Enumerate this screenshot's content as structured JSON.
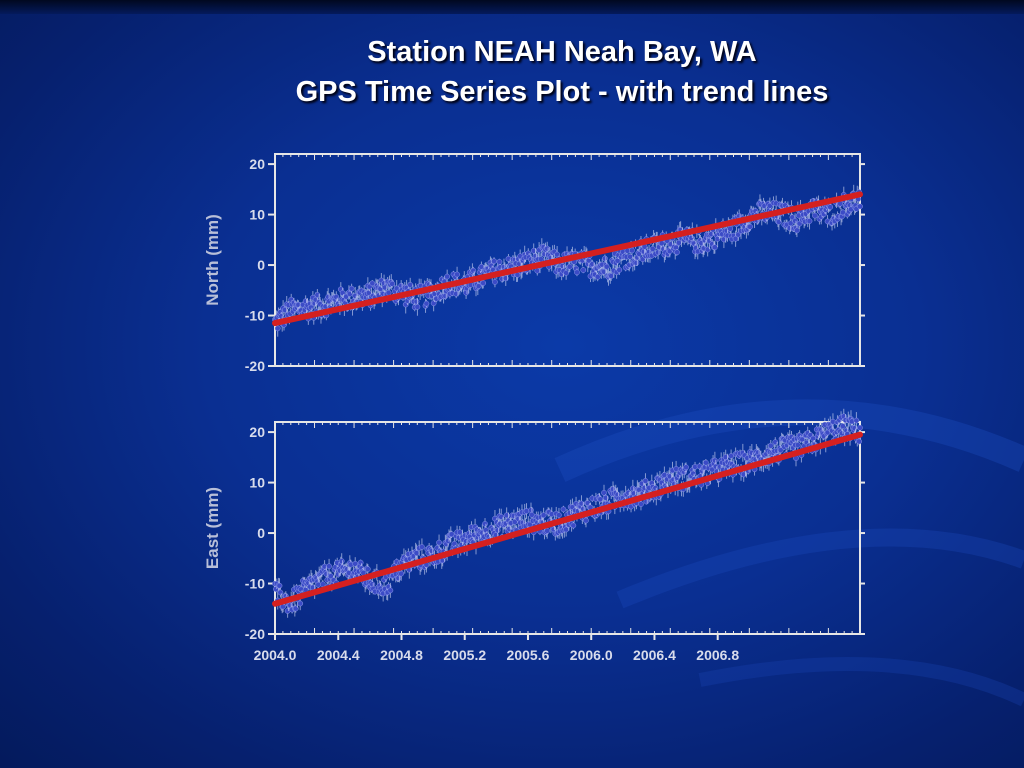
{
  "slide": {
    "title_line1": "Station NEAH Neah Bay, WA",
    "title_line2": "GPS Time Series Plot - with trend lines"
  },
  "colors": {
    "background": "#0a2f92",
    "data_points": "#3b4bc6",
    "data_outline": "#e8ecff",
    "trend_line": "#d42020",
    "frame": "#e6e6e6"
  },
  "chart_data": [
    {
      "type": "scatter",
      "panel": "north",
      "ylabel": "North (mm)",
      "xlim": [
        2004.0,
        2007.7
      ],
      "ylim": [
        -20,
        22
      ],
      "yticks": [
        "20",
        "10",
        "0",
        "-10",
        "-20"
      ],
      "ytick_values": [
        20,
        10,
        0,
        -10,
        -20
      ],
      "grid": false,
      "series": [
        {
          "kind": "points",
          "x": [
            2004.0,
            2004.1,
            2004.2,
            2004.3,
            2004.4,
            2004.5,
            2004.6,
            2004.7,
            2004.8,
            2004.9,
            2005.0,
            2005.1,
            2005.2,
            2005.3,
            2005.4,
            2005.5,
            2005.6,
            2005.7,
            2005.8,
            2005.9,
            2006.0,
            2006.1,
            2006.2,
            2006.3,
            2006.4,
            2006.5,
            2006.6,
            2006.7,
            2006.8,
            2006.9,
            2007.0,
            2007.1,
            2007.2,
            2007.3,
            2007.4,
            2007.5,
            2007.6,
            2007.7
          ],
          "y": [
            -11.5,
            -9.0,
            -8.5,
            -8.0,
            -7.0,
            -6.5,
            -6.0,
            -4.5,
            -5.5,
            -6.5,
            -5.5,
            -3.5,
            -4.0,
            -2.5,
            -1.0,
            -0.5,
            0.5,
            1.5,
            0.0,
            0.5,
            0.0,
            -0.5,
            1.5,
            2.5,
            3.5,
            4.5,
            5.0,
            4.5,
            6.0,
            7.0,
            9.5,
            10.5,
            10.0,
            9.0,
            11.0,
            10.0,
            12.0,
            13.0
          ]
        },
        {
          "kind": "trend",
          "x": [
            2004.0,
            2007.7
          ],
          "y": [
            -11.5,
            14.0
          ]
        }
      ]
    },
    {
      "type": "scatter",
      "panel": "east",
      "ylabel": "East (mm)",
      "xlabel": "",
      "xlim": [
        2004.0,
        2007.7
      ],
      "ylim": [
        -20,
        22
      ],
      "yticks": [
        "20",
        "10",
        "0",
        "-10",
        "-20"
      ],
      "ytick_values": [
        20,
        10,
        0,
        -10,
        -20
      ],
      "xticks": [
        "2004.0",
        "2004.4",
        "2004.8",
        "2005.2",
        "2005.6",
        "2006.0",
        "2006.4",
        "2006.8"
      ],
      "xtick_values": [
        2004.0,
        2004.4,
        2004.8,
        2005.2,
        2005.6,
        2006.0,
        2006.4,
        2006.8
      ],
      "grid": false,
      "series": [
        {
          "kind": "points",
          "x": [
            2004.0,
            2004.1,
            2004.2,
            2004.3,
            2004.4,
            2004.5,
            2004.6,
            2004.7,
            2004.8,
            2004.9,
            2005.0,
            2005.1,
            2005.2,
            2005.3,
            2005.4,
            2005.5,
            2005.6,
            2005.7,
            2005.8,
            2005.9,
            2006.0,
            2006.1,
            2006.2,
            2006.3,
            2006.4,
            2006.5,
            2006.6,
            2006.7,
            2006.8,
            2006.9,
            2007.0,
            2007.1,
            2007.2,
            2007.3,
            2007.4,
            2007.5,
            2007.6,
            2007.7
          ],
          "y": [
            -12.0,
            -14.0,
            -11.0,
            -9.0,
            -8.0,
            -7.0,
            -9.5,
            -10.5,
            -6.5,
            -5.0,
            -4.5,
            -2.5,
            -1.5,
            0.0,
            1.0,
            2.0,
            2.5,
            2.0,
            2.0,
            4.0,
            5.0,
            6.0,
            7.5,
            7.5,
            9.0,
            10.5,
            11.0,
            11.5,
            12.5,
            13.5,
            14.0,
            15.5,
            16.5,
            17.0,
            18.0,
            20.0,
            21.0,
            20.0
          ]
        },
        {
          "kind": "trend",
          "x": [
            2004.0,
            2007.7
          ],
          "y": [
            -14.0,
            19.5
          ]
        }
      ]
    }
  ]
}
